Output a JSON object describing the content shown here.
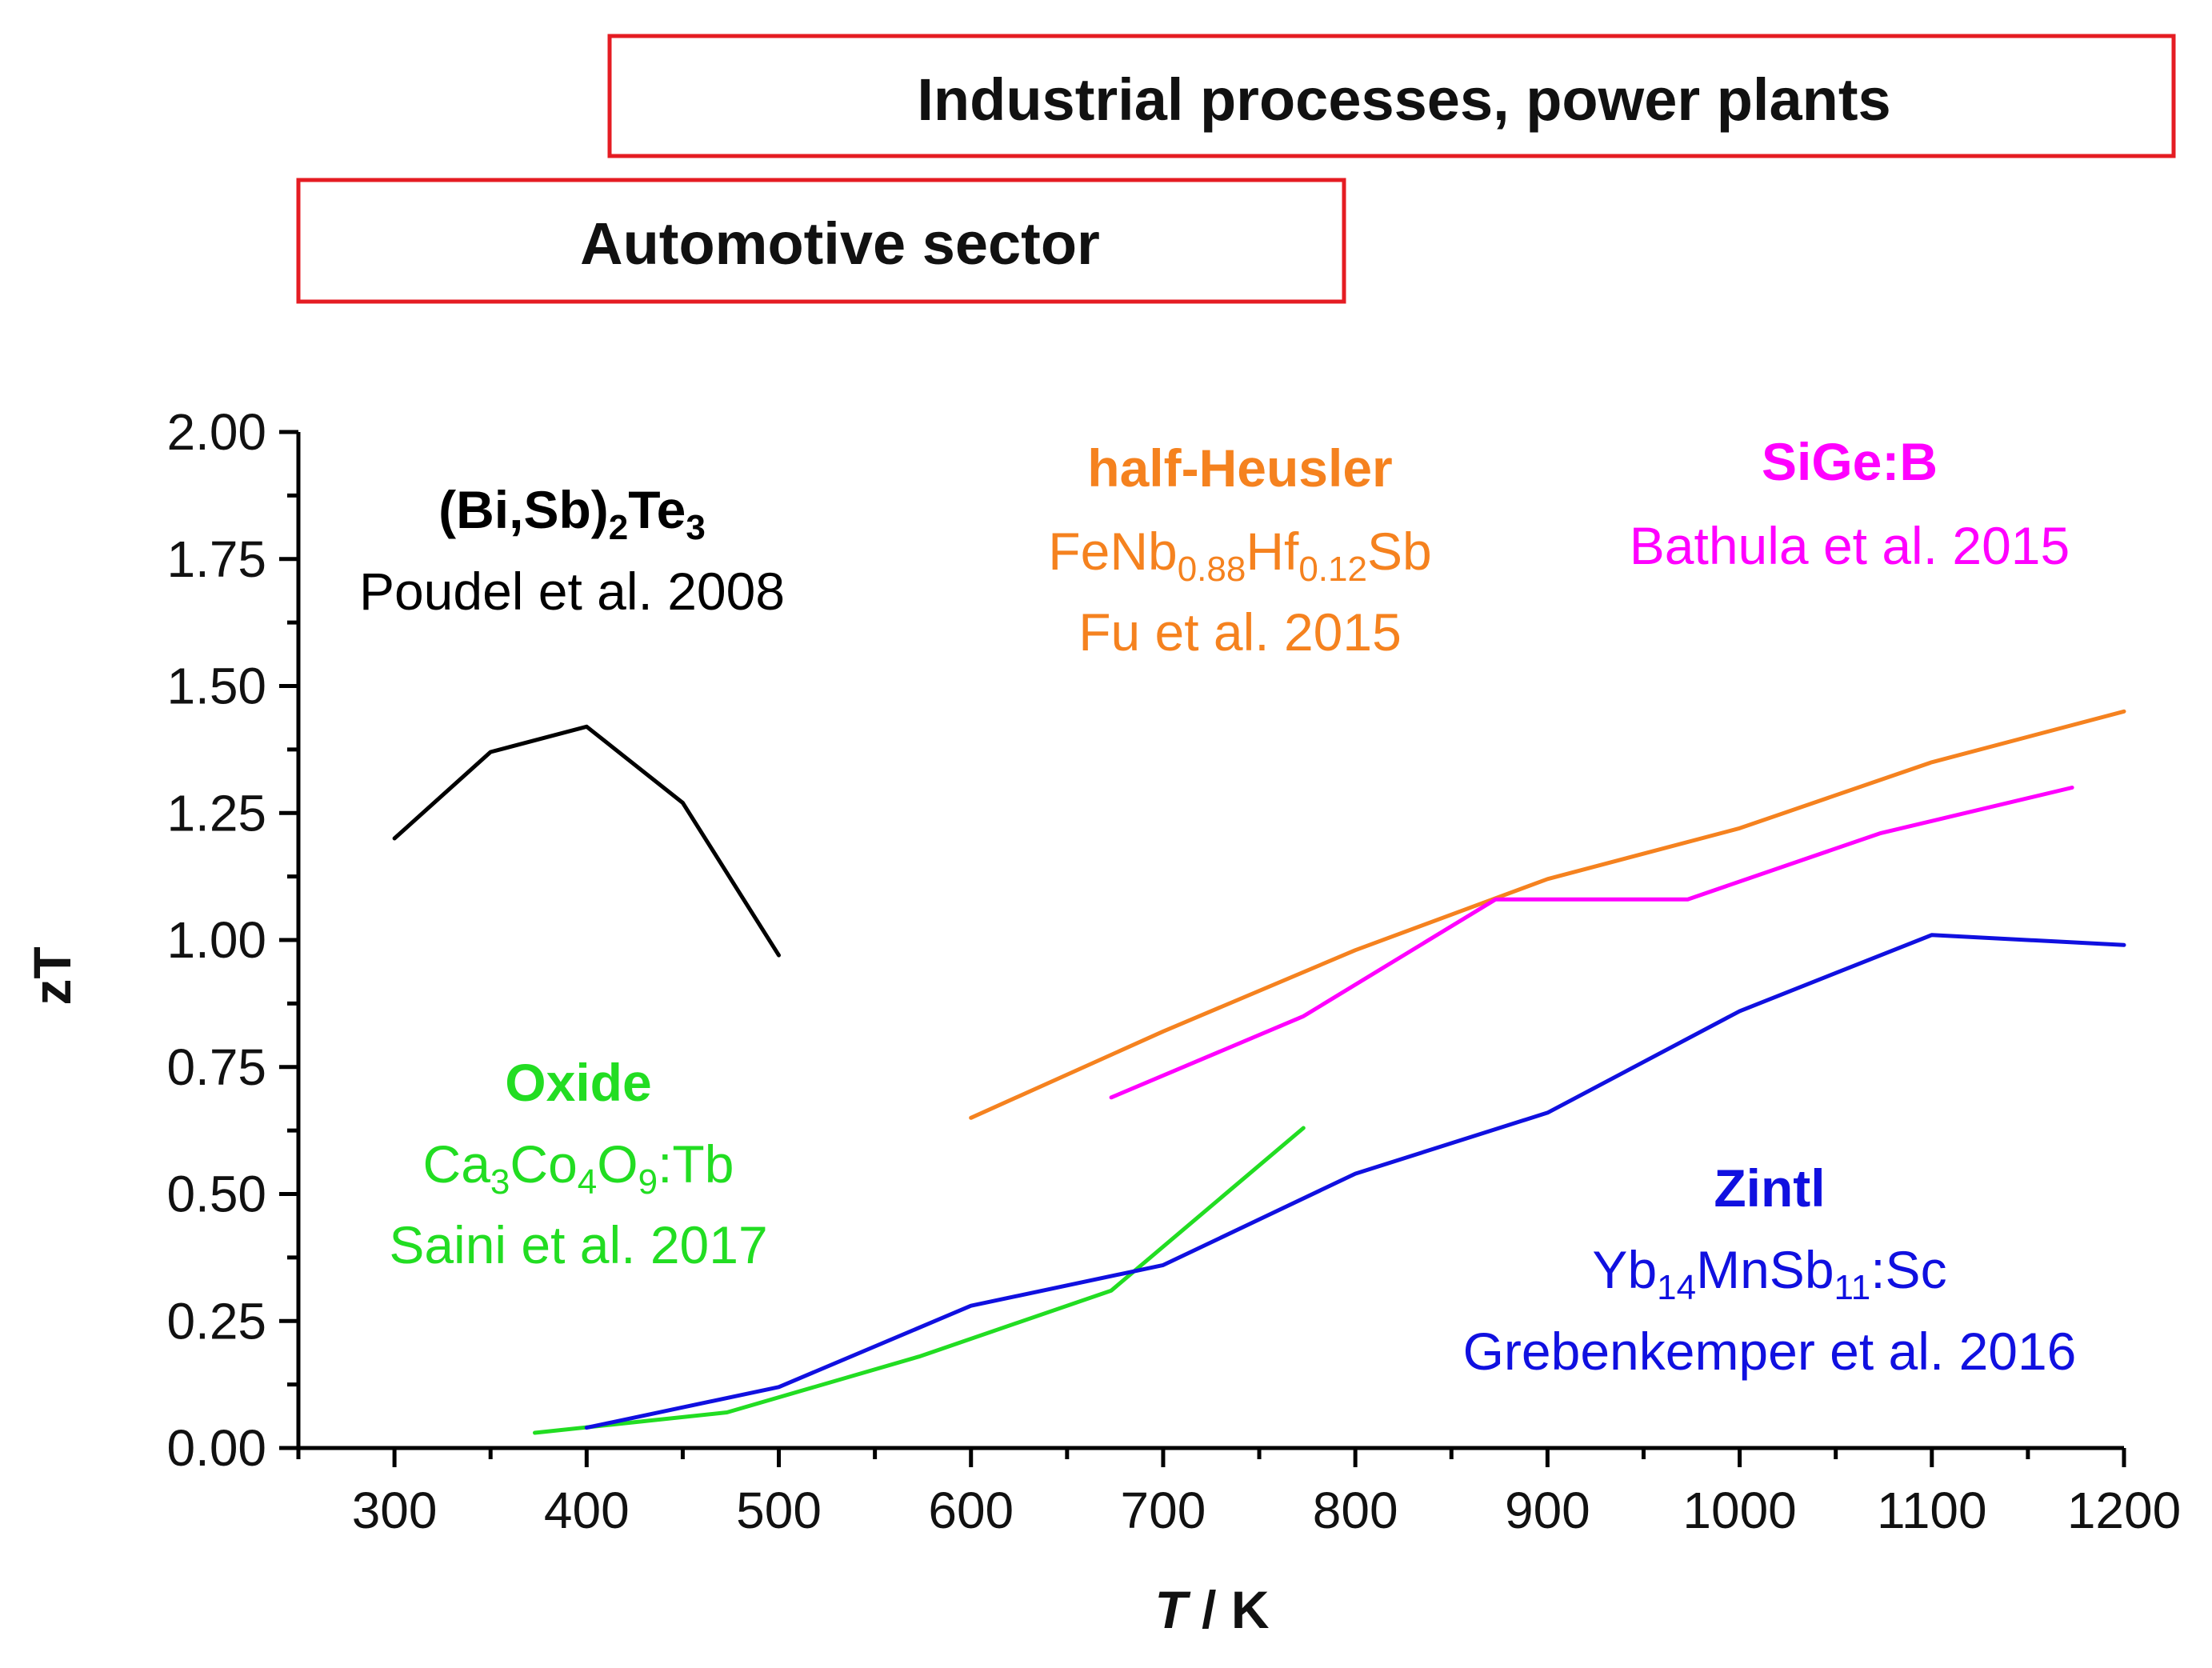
{
  "chart_data": {
    "type": "line",
    "xlabel_italic": "T",
    "xlabel_rest": " / K",
    "ylabel": "zT",
    "xlim": [
      250,
      1200
    ],
    "ylim": [
      0,
      2
    ],
    "xticks": [
      300,
      400,
      500,
      600,
      700,
      800,
      900,
      1000,
      1100,
      1200
    ],
    "yticks": [
      0,
      0.25,
      0.5,
      0.75,
      1.0,
      1.25,
      1.5,
      1.75,
      2.0
    ],
    "ytick_labels": [
      "0.00",
      "0.25",
      "0.50",
      "0.75",
      "1.00",
      "1.25",
      "1.50",
      "1.75",
      "2.00"
    ],
    "ranges": [
      {
        "label": "Industrial processes, power plants",
        "x": [
          410,
          1225
        ]
      },
      {
        "label": "Automotive sector",
        "x": [
          250,
          795
        ]
      }
    ],
    "series": [
      {
        "name": "(Bi,Sb)2Te3",
        "color": "#000000",
        "x": [
          300,
          350,
          400,
          450,
          500
        ],
        "y": [
          1.2,
          1.37,
          1.42,
          1.27,
          0.97
        ]
      },
      {
        "name": "half-Heusler",
        "color": "#f5821f",
        "x": [
          600,
          700,
          800,
          900,
          1000,
          1100,
          1200
        ],
        "y": [
          0.65,
          0.82,
          0.98,
          1.12,
          1.22,
          1.35,
          1.45
        ]
      },
      {
        "name": "SiGe:B",
        "color": "#ff00ff",
        "x": [
          673,
          773,
          873,
          973,
          1073,
          1173
        ],
        "y": [
          0.69,
          0.85,
          1.08,
          1.08,
          1.21,
          1.3
        ]
      },
      {
        "name": "Oxide",
        "color": "#22dd22",
        "x": [
          373,
          473,
          573,
          673,
          773
        ],
        "y": [
          0.03,
          0.07,
          0.18,
          0.31,
          0.63
        ]
      },
      {
        "name": "Zintl",
        "color": "#1010e0",
        "x": [
          400,
          500,
          600,
          700,
          800,
          900,
          1000,
          1100,
          1200
        ],
        "y": [
          0.04,
          0.12,
          0.28,
          0.36,
          0.54,
          0.66,
          0.86,
          1.01,
          0.99
        ]
      }
    ]
  },
  "annotations": {
    "bisbte": {
      "color": "#000000",
      "title": "(Bi,Sb)",
      "sub1": "2",
      "title2": "Te",
      "sub2": "3",
      "ref": "Poudel et al. 2008"
    },
    "heusler": {
      "color": "#f5821f",
      "title": "half-Heusler",
      "f1": "FeNb",
      "s1": "0.88",
      "f2": "Hf",
      "s2": "0.12",
      "f3": "Sb",
      "ref": "Fu et al. 2015"
    },
    "sige": {
      "color": "#ff00ff",
      "title": "SiGe:B",
      "ref": "Bathula et al. 2015"
    },
    "oxide": {
      "color": "#22dd22",
      "title": "Oxide",
      "f1": "Ca",
      "s1": "3",
      "f2": "Co",
      "s2": "4",
      "f3": "O",
      "s3": "9",
      "f4": ":Tb",
      "ref": "Saini et al. 2017"
    },
    "zintl": {
      "color": "#1010e0",
      "title": "Zintl",
      "f1": "Yb",
      "s1": "14",
      "f2": "MnSb",
      "s2": "11",
      "f3": ":Sc",
      "ref": "Grebenkemper et al. 2016"
    }
  }
}
